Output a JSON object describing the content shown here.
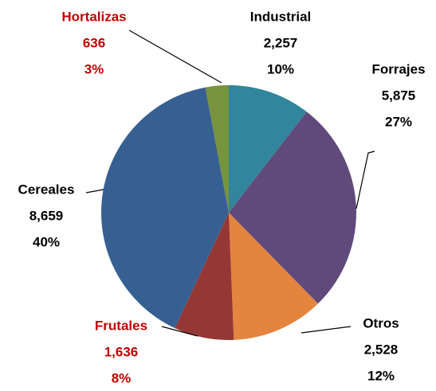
{
  "chart_data": {
    "type": "pie",
    "categories": [
      "Industrial",
      "Forrajes",
      "Otros",
      "Frutales",
      "Cereales",
      "Hortalizas"
    ],
    "values": [
      2257,
      5875,
      2528,
      1636,
      8659,
      636
    ],
    "value_labels": [
      "2,257",
      "5,875",
      "2,528",
      "1,636",
      "8,659",
      "636"
    ],
    "percent_labels": [
      "10%",
      "27%",
      "12%",
      "8%",
      "40%",
      "3%"
    ],
    "colors": [
      "#31859c",
      "#604a7b",
      "#e3843f",
      "#953735",
      "#376092",
      "#77933c"
    ],
    "label_colors": [
      "#000000",
      "#000000",
      "#000000",
      "#c00000",
      "#000000",
      "#c00000"
    ]
  }
}
